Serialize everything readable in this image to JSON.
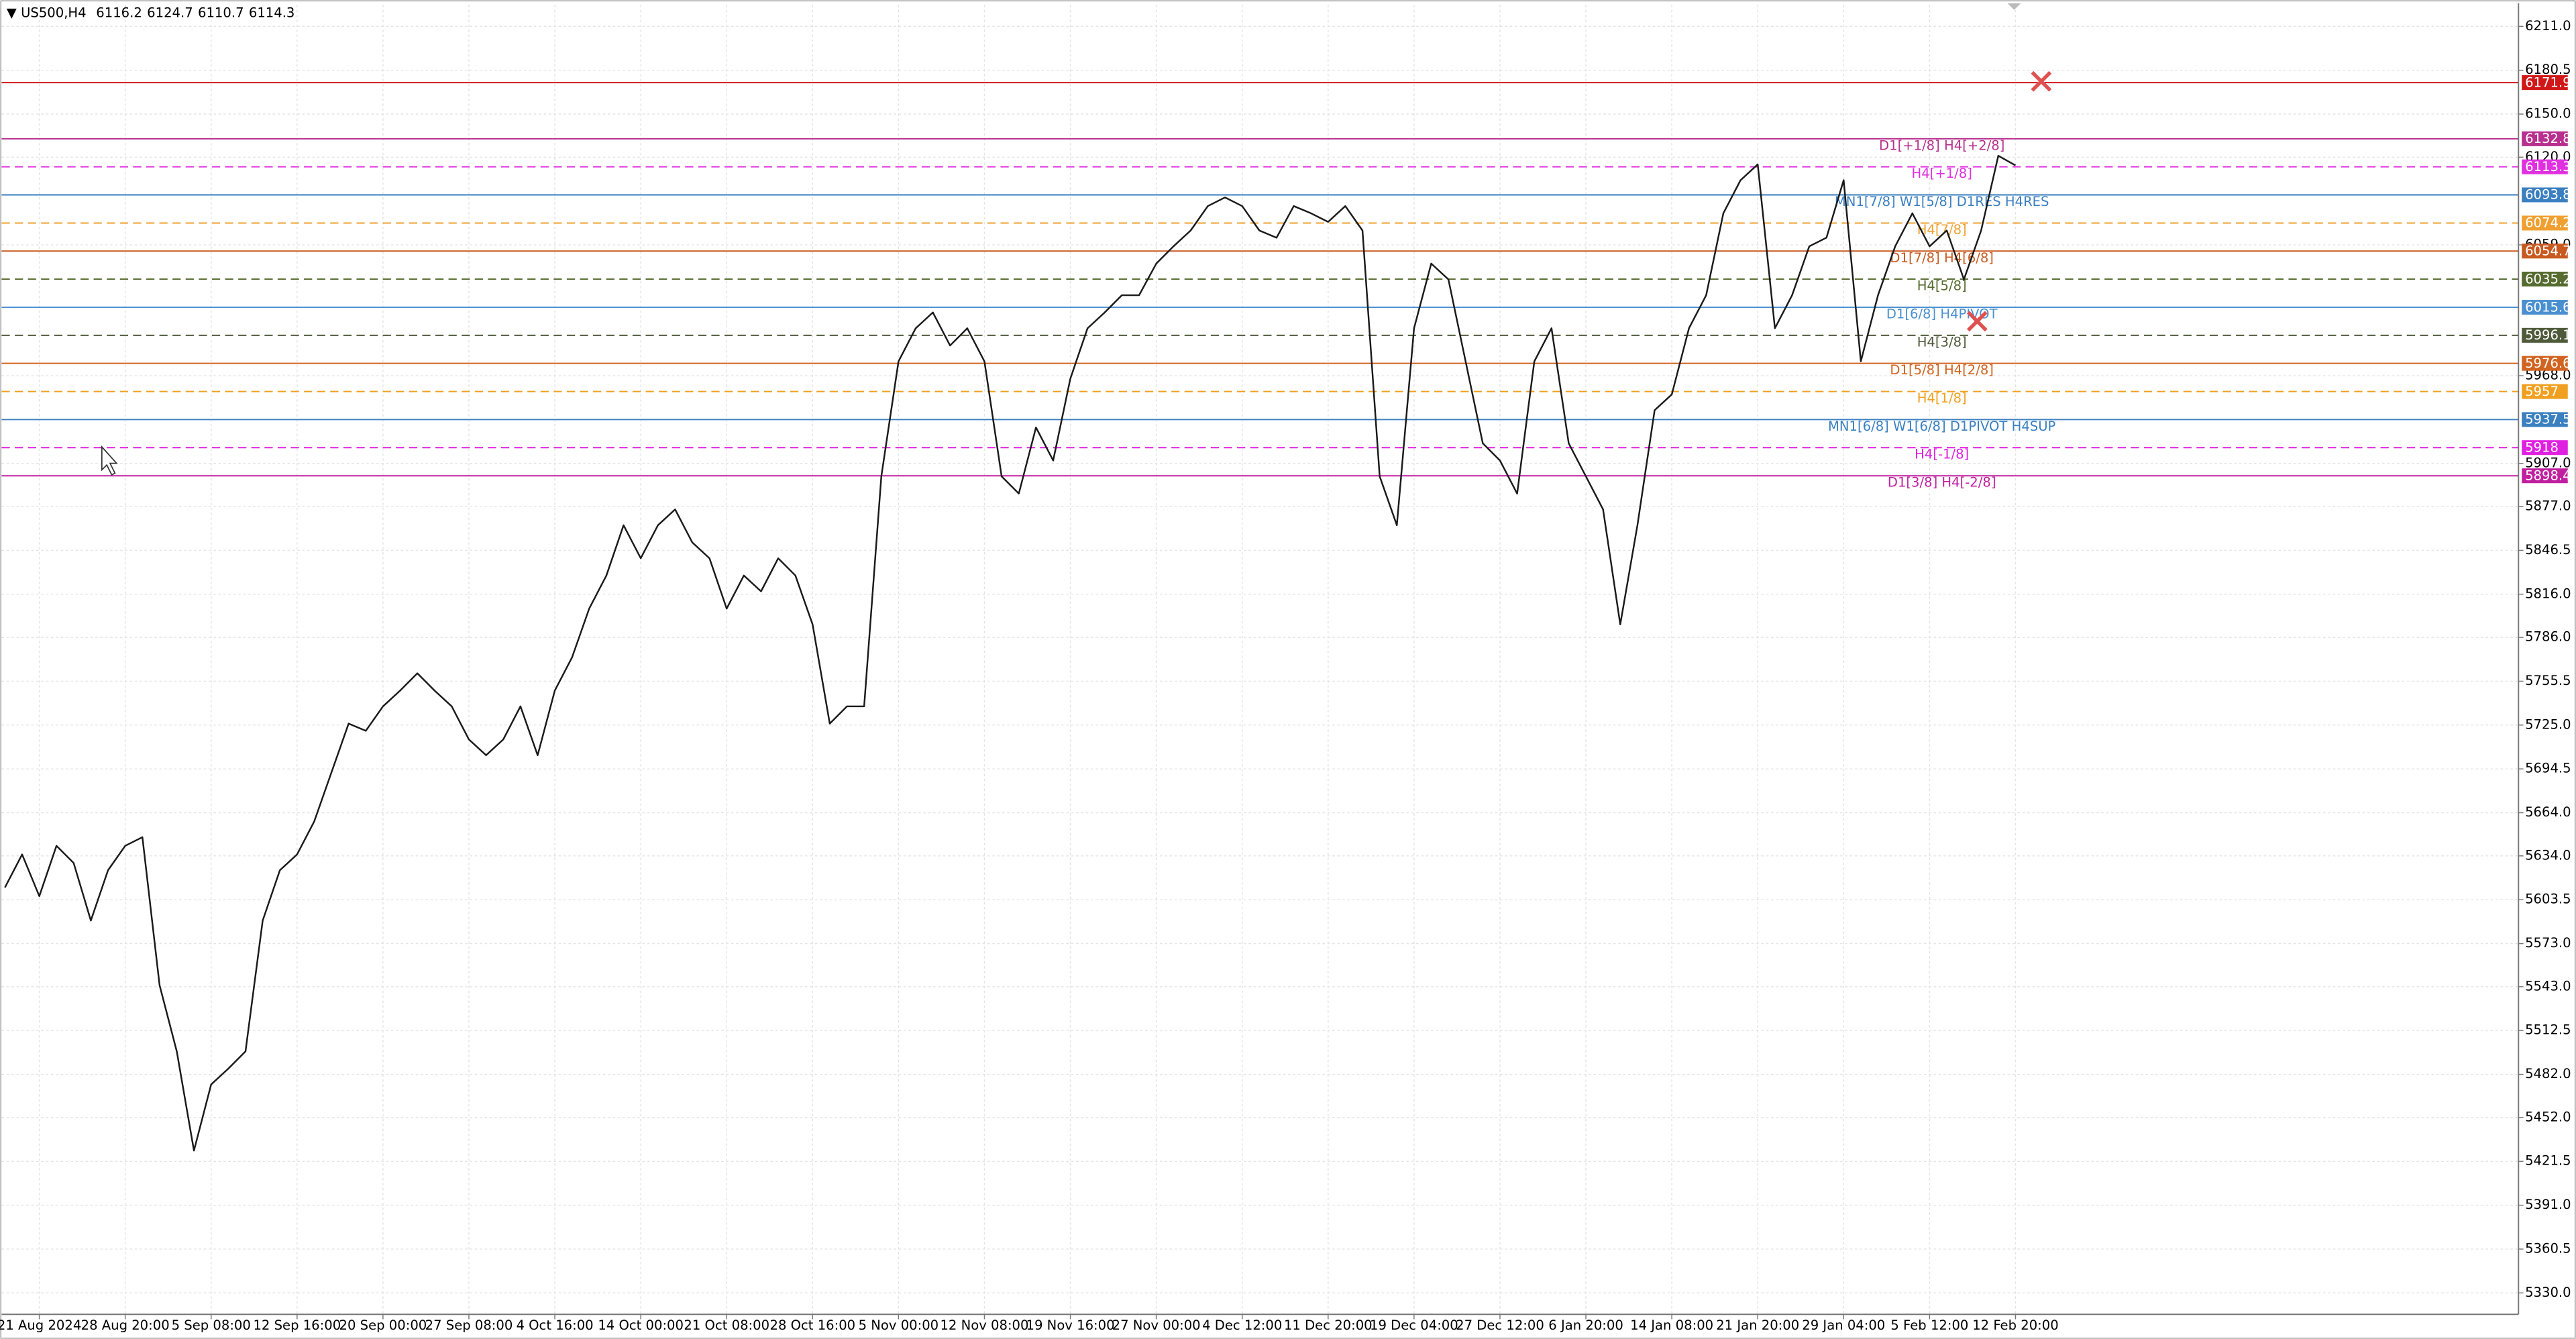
{
  "chart_data": {
    "type": "line",
    "title": "US500,H4",
    "ohlc": [
      6116.2,
      6124.7,
      6110.7,
      6114.3
    ],
    "color": "#1a1a1a",
    "grid": true,
    "ylim": [
      5315.1,
      6225.9
    ],
    "yticks": [
      {
        "value": 6211,
        "label": "6211.0"
      },
      {
        "value": 6180.5,
        "label": "6180.5"
      },
      {
        "value": 6150,
        "label": "6150.0"
      },
      {
        "value": 6120,
        "label": "6120.0"
      },
      {
        "value": 6059,
        "label": "6059.0"
      },
      {
        "value": 5968,
        "label": "5968.0"
      },
      {
        "value": 5907,
        "label": "5907.0"
      },
      {
        "value": 5877,
        "label": "5877.0"
      },
      {
        "value": 5846.5,
        "label": "5846.5"
      },
      {
        "value": 5816,
        "label": "5816.0"
      },
      {
        "value": 5786,
        "label": "5786.0"
      },
      {
        "value": 5755.5,
        "label": "5755.5"
      },
      {
        "value": 5725,
        "label": "5725.0"
      },
      {
        "value": 5694.5,
        "label": "5694.5"
      },
      {
        "value": 5664,
        "label": "5664.0"
      },
      {
        "value": 5634,
        "label": "5634.0"
      },
      {
        "value": 5603.5,
        "label": "5603.5"
      },
      {
        "value": 5573,
        "label": "5573.0"
      },
      {
        "value": 5543,
        "label": "5543.0"
      },
      {
        "value": 5512.5,
        "label": "5512.5"
      },
      {
        "value": 5482,
        "label": "5482.0"
      },
      {
        "value": 5452,
        "label": "5452.0"
      },
      {
        "value": 5421.5,
        "label": "5421.5"
      },
      {
        "value": 5391,
        "label": "5391.0"
      },
      {
        "value": 5360.5,
        "label": "5360.5"
      },
      {
        "value": 5330,
        "label": "5330.0"
      }
    ],
    "categories": [
      null,
      null,
      "21 Aug 2024",
      null,
      null,
      null,
      null,
      "28 Aug 20:00",
      null,
      null,
      null,
      null,
      "5 Sep 08:00",
      null,
      null,
      null,
      null,
      "12 Sep 16:00",
      null,
      null,
      null,
      null,
      "20 Sep 00:00",
      null,
      null,
      null,
      null,
      "27 Sep 08:00",
      null,
      null,
      null,
      null,
      "4 Oct 16:00",
      null,
      null,
      null,
      null,
      "14 Oct 00:00",
      null,
      null,
      null,
      null,
      "21 Oct 08:00",
      null,
      null,
      null,
      null,
      "28 Oct 16:00",
      null,
      null,
      null,
      null,
      "5 Nov 00:00",
      null,
      null,
      null,
      null,
      "12 Nov 08:00",
      null,
      null,
      null,
      null,
      "19 Nov 16:00",
      null,
      null,
      null,
      null,
      "27 Nov 00:00",
      null,
      null,
      null,
      null,
      "4 Dec 12:00",
      null,
      null,
      null,
      null,
      "11 Dec 20:00",
      null,
      null,
      null,
      null,
      "19 Dec 04:00",
      null,
      null,
      null,
      null,
      "27 Dec 12:00",
      null,
      null,
      null,
      null,
      "6 Jan 20:00",
      null,
      null,
      null,
      null,
      "14 Jan 08:00",
      null,
      null,
      null,
      null,
      "21 Jan 20:00",
      null,
      null,
      null,
      null,
      "29 Jan 04:00",
      null,
      null,
      null,
      null,
      "5 Feb 12:00",
      null,
      null,
      null,
      null,
      "12 Feb 20:00"
    ],
    "values": [
      5612,
      5635,
      5606,
      5641,
      5629,
      5589,
      5624,
      5641,
      5647,
      5544,
      5498,
      5429,
      5475,
      5486,
      5498,
      5589,
      5624,
      5635,
      5658,
      5692,
      5726,
      5721,
      5738,
      5749,
      5761,
      5749,
      5738,
      5715,
      5704,
      5715,
      5738,
      5704,
      5749,
      5772,
      5806,
      5829,
      5864,
      5841,
      5864,
      5875,
      5852,
      5841,
      5806,
      5829,
      5818,
      5841,
      5829,
      5795,
      5726,
      5738,
      5738,
      5898,
      5978,
      6001,
      6012,
      5989,
      6001,
      5978,
      5898,
      5886,
      5932,
      5909,
      5966,
      6001,
      6012,
      6024,
      6024,
      6046,
      6058,
      6069,
      6086,
      6092,
      6086,
      6069,
      6064,
      6086,
      6081,
      6075,
      6086,
      6069,
      5898,
      5864,
      6001,
      6046,
      6035,
      5978,
      5921,
      5909,
      5886,
      5978,
      6001,
      5921,
      5898,
      5875,
      5795,
      5864,
      5944,
      5955,
      6001,
      6024,
      6081,
      6104,
      6115,
      6001,
      6024,
      6058,
      6064,
      6104,
      5978,
      6024,
      6058,
      6081,
      6058,
      6069,
      6035,
      6069,
      6121,
      6114.3
    ],
    "levels": [
      {
        "value": 6171.9,
        "color": "#d01818",
        "dashed": false
      },
      {
        "value": 6132.8,
        "color": "#b8308f",
        "dashed": false,
        "text": "D1[+1/8] H4[+2/8]"
      },
      {
        "value": 6113.3,
        "color": "#e030e0",
        "dashed": true,
        "text": "H4[+1/8]"
      },
      {
        "value": 6093.8,
        "color": "#3a7fc0",
        "dashed": false,
        "text": "MN1[7/8] W1[5/8] D1RES H4RES"
      },
      {
        "value": 6074.2,
        "color": "#f0a030",
        "dashed": true,
        "text": "H4[7/8]"
      },
      {
        "value": 6054.7,
        "color": "#c85a20",
        "dashed": false,
        "text": "D1[7/8] H4[6/8]"
      },
      {
        "value": 6035.2,
        "color": "#556b2f",
        "dashed": true,
        "text": "H4[5/8]"
      },
      {
        "value": 6015.6,
        "color": "#4a90d0",
        "dashed": false,
        "text": "D1[6/8] H4PIVOT"
      },
      {
        "value": 5996.1,
        "color": "#4f5a3a",
        "dashed": true,
        "text": "H4[3/8]"
      },
      {
        "value": 5976.6,
        "color": "#d06420",
        "dashed": false,
        "text": "D1[5/8] H4[2/8]"
      },
      {
        "value": 5957.0,
        "color": "#f0a020",
        "dashed": true,
        "text": "H4[1/8]"
      },
      {
        "value": 5937.5,
        "color": "#3a80c0",
        "dashed": false,
        "text": "MN1[6/8] W1[6/8] D1PIVOT H4SUP"
      },
      {
        "value": 5918.0,
        "color": "#e020e0",
        "dashed": true,
        "text": "H4[-1/8]"
      },
      {
        "value": 5898.4,
        "color": "#c020a0",
        "dashed": false,
        "text": "D1[3/8] H4[-2/8]"
      }
    ]
  }
}
